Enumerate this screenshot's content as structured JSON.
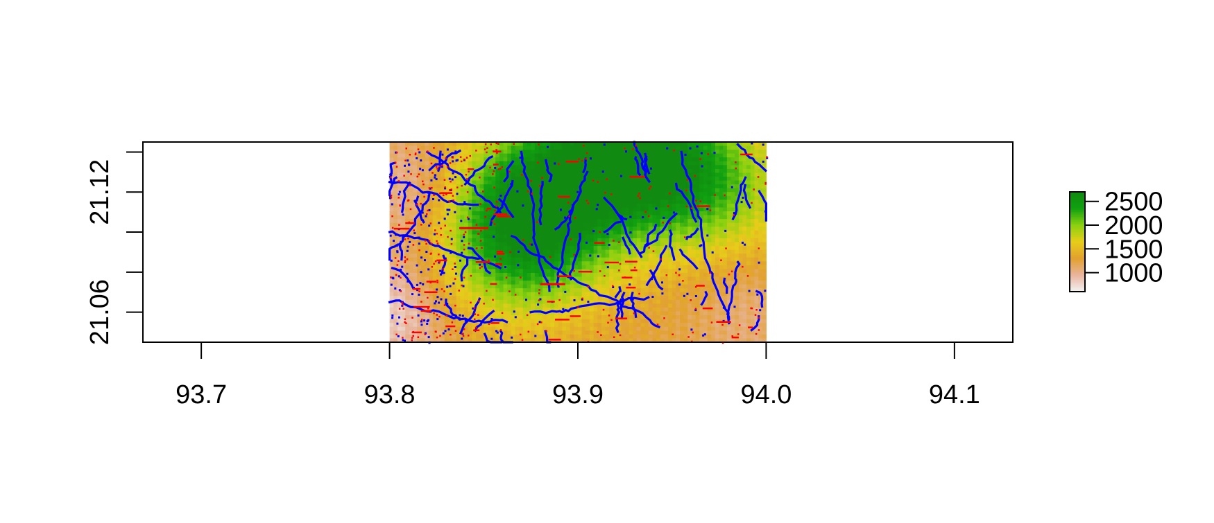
{
  "chart_data": {
    "type": "heatmap",
    "title": "",
    "xlabel": "",
    "ylabel": "",
    "xlim": [
      93.669,
      94.131
    ],
    "ylim": [
      21.045,
      21.145
    ],
    "x_ticks": [
      93.7,
      93.8,
      93.9,
      94.0,
      94.1
    ],
    "x_tick_labels": [
      "93.7",
      "93.8",
      "93.9",
      "94.0",
      "94.1"
    ],
    "y_ticks": [
      21.06,
      21.08,
      21.1,
      21.12,
      21.14
    ],
    "y_tick_labels": [
      "21.06",
      "",
      "",
      "21.12",
      ""
    ],
    "raster_extent": {
      "xmin": 93.8,
      "xmax": 94.0,
      "ymin": 21.045,
      "ymax": 21.145
    },
    "elevation_peaks": [
      {
        "x": 93.93,
        "y": 21.14,
        "value": 2600
      },
      {
        "x": 93.88,
        "y": 21.12,
        "value": 2350
      },
      {
        "x": 93.87,
        "y": 21.09,
        "value": 2150
      },
      {
        "x": 93.97,
        "y": 21.12,
        "value": 1950
      }
    ],
    "elevation_lows": [
      {
        "x": 93.8,
        "y": 21.06,
        "value": 650
      },
      {
        "x": 93.81,
        "y": 21.12,
        "value": 800
      },
      {
        "x": 93.99,
        "y": 21.06,
        "value": 1000
      }
    ],
    "stream_color": "#0000ff",
    "overlay_color": "#ff0000",
    "colorbar": {
      "min": 600,
      "max": 2700,
      "ticks": [
        1000,
        1500,
        2000,
        2500
      ],
      "tick_labels": [
        "1000",
        "1500",
        "2000",
        "2500"
      ],
      "colors": [
        "#f2f2f2",
        "#e8b49b",
        "#e2a12e",
        "#e7cd1a",
        "#8ad10f",
        "#10a110",
        "#108a10"
      ]
    },
    "grid": false,
    "legend_position": "right"
  }
}
